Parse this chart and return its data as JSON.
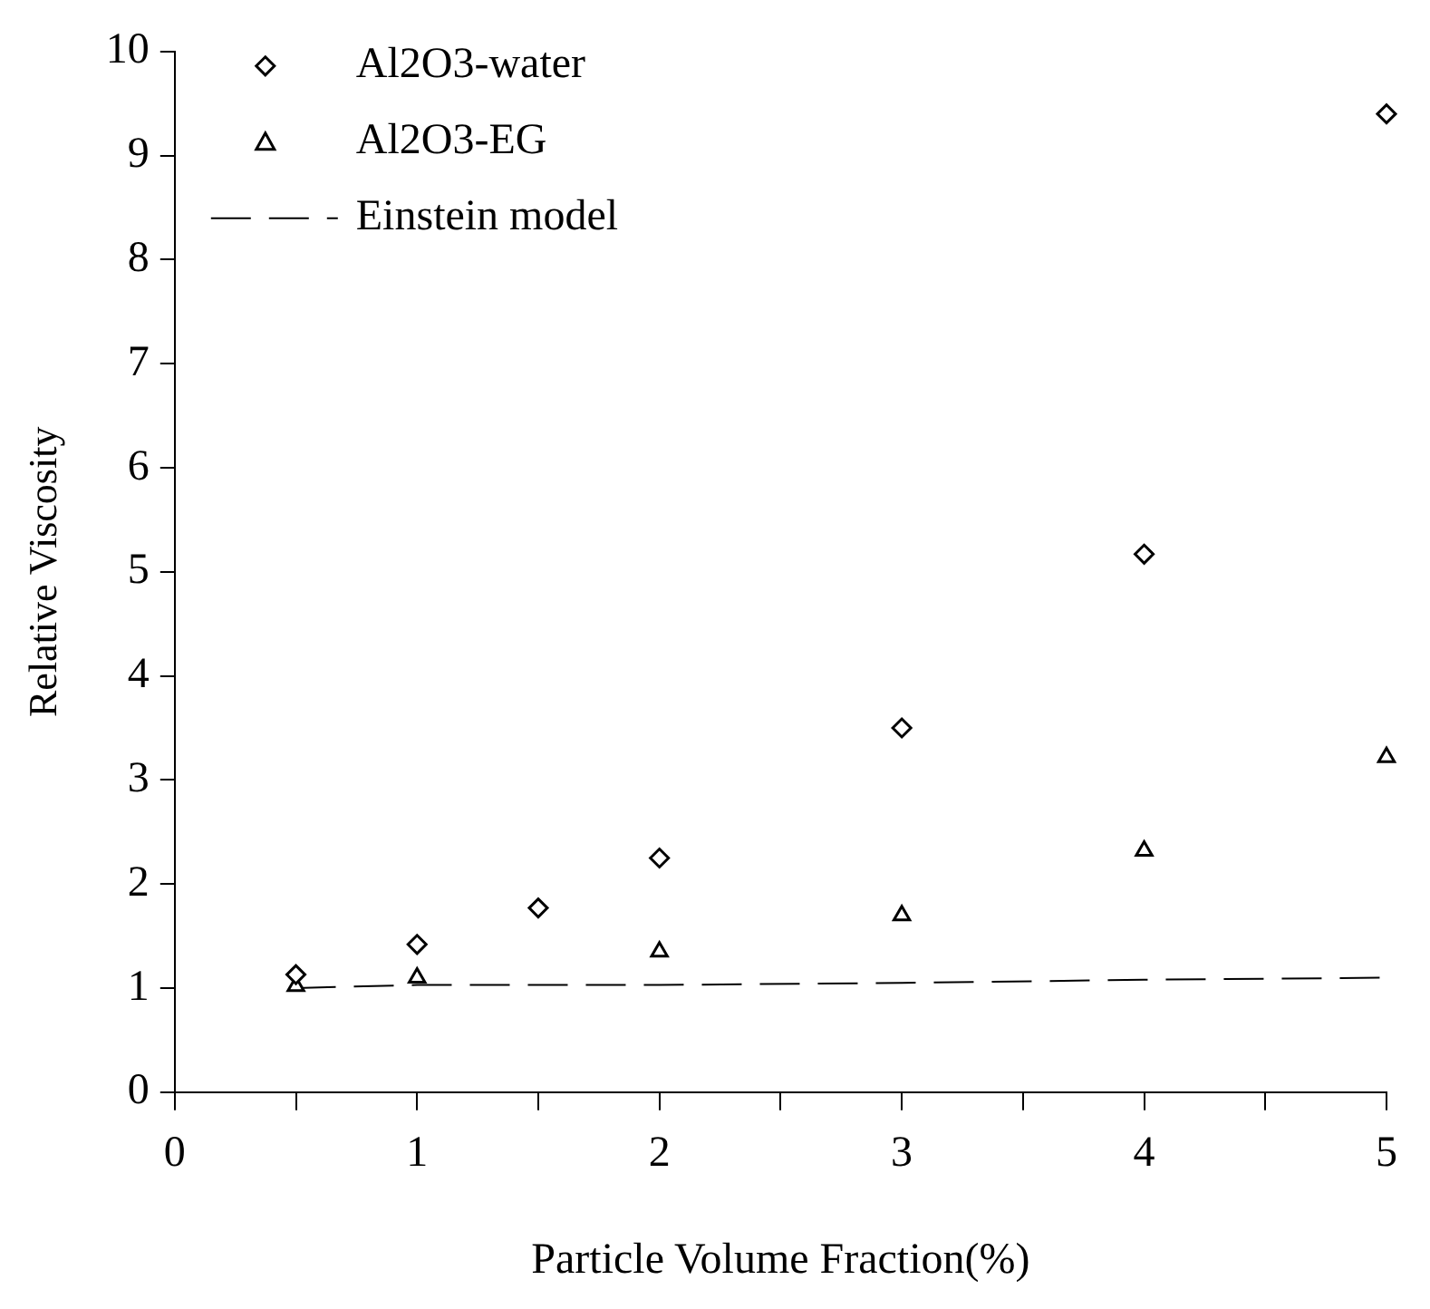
{
  "chart_data": {
    "type": "scatter",
    "xlabel": "Particle Volume Fraction(%)",
    "ylabel": "Relative Viscosity",
    "xlim": [
      0,
      5
    ],
    "xticks": [
      0,
      {
        "value": 0.5,
        "label": null
      },
      1,
      {
        "value": 1.5,
        "label": null
      },
      2,
      {
        "value": 2.5,
        "label": null
      },
      3,
      {
        "value": 3.5,
        "label": null
      },
      4,
      {
        "value": 4.5,
        "label": null
      },
      5
    ],
    "ylim": [
      0,
      10
    ],
    "yticks": [
      0,
      1,
      2,
      3,
      4,
      5,
      6,
      7,
      8,
      9,
      10
    ],
    "grid": false,
    "legend": "top left",
    "series": [
      {
        "name": "Al2O3-water",
        "color": "#000000",
        "marker": "diamond",
        "x": [
          0.5,
          1,
          1.5,
          2,
          3,
          4,
          5
        ],
        "values": [
          1.13,
          1.42,
          1.77,
          2.25,
          3.5,
          5.17,
          9.4
        ]
      },
      {
        "name": "Al2O3-EG",
        "color": "#000000",
        "marker": "triangle",
        "x": [
          0.5,
          1,
          2,
          3,
          4,
          5
        ],
        "values": [
          1.02,
          1.1,
          1.35,
          1.7,
          2.32,
          3.22
        ]
      },
      {
        "name": "Einstein model",
        "type": "line",
        "color": "#000000",
        "marker": "none",
        "line_style": "dashed",
        "x": [
          0.5,
          1,
          2,
          3,
          4,
          5
        ],
        "values": [
          1.0,
          1.03,
          1.03,
          1.05,
          1.08,
          1.1
        ]
      }
    ]
  }
}
